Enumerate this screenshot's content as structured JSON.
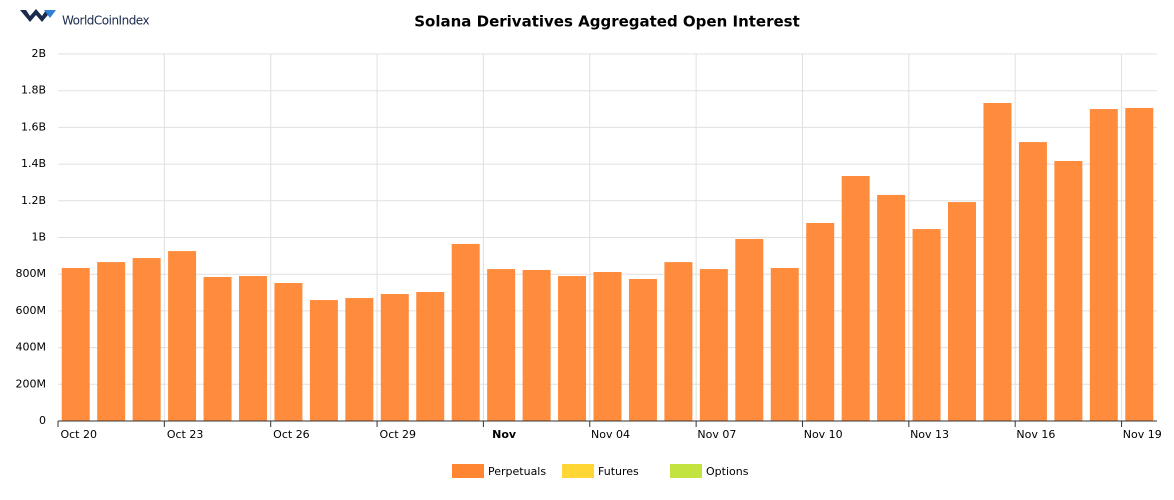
{
  "logo_text": "WorldCoinIndex",
  "chart_data": {
    "type": "bar",
    "title": "Solana Derivatives Aggregated Open Interest",
    "categories": [
      "Oct 20",
      null,
      null,
      "Oct 23",
      null,
      null,
      "Oct 26",
      null,
      null,
      "Oct 29",
      null,
      null,
      "Nov",
      null,
      null,
      "Nov 04",
      null,
      null,
      "Nov 07",
      null,
      null,
      "Nov 10",
      null,
      null,
      "Nov 13",
      null,
      null,
      "Nov 16",
      null,
      null,
      "Nov 19"
    ],
    "series": [
      {
        "name": "Perpetuals",
        "color": "#ff8533",
        "values": [
          834000000,
          866000000,
          888000000,
          926000000,
          785000000,
          790000000,
          752000000,
          659000000,
          670000000,
          692000000,
          703000000,
          965000000,
          828000000,
          823000000,
          790000000,
          812000000,
          774000000,
          866000000,
          828000000,
          992000000,
          834000000,
          1079000000,
          1335000000,
          1232000000,
          1046000000,
          1193000000,
          1733000000,
          1520000000,
          1417000000,
          1700000000,
          1706000000
        ]
      },
      {
        "name": "Futures",
        "color": "#ffd633"
      },
      {
        "name": "Options",
        "color": "#c3e33f"
      }
    ],
    "ylim": [
      0,
      2000000000
    ],
    "yticks": [
      0,
      {
        "value": 200000000,
        "label": "200M"
      },
      {
        "value": 400000000,
        "label": "400M"
      },
      {
        "value": 600000000,
        "label": "600M"
      },
      {
        "value": 800000000,
        "label": "800M"
      },
      {
        "value": 1000000000,
        "label": "1B"
      },
      {
        "value": 1200000000,
        "label": "1.2B"
      },
      {
        "value": 1400000000,
        "label": "1.4B"
      },
      {
        "value": 1600000000,
        "label": "1.6B"
      },
      {
        "value": 1800000000,
        "label": "1.8B"
      },
      {
        "value": 2000000000,
        "label": "2B"
      }
    ],
    "grid": true
  }
}
